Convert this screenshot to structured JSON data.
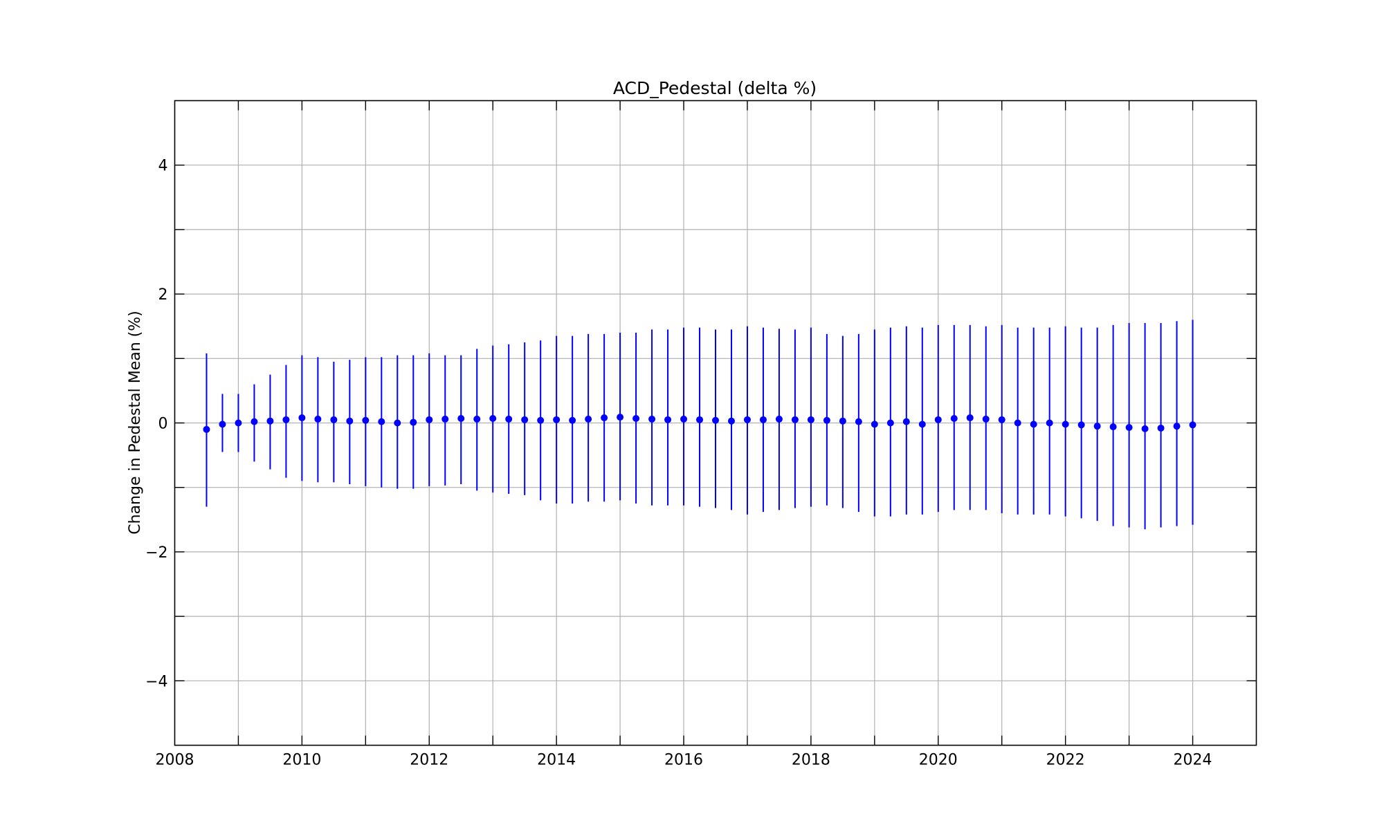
{
  "chart_data": {
    "type": "scatter",
    "title": "ACD_Pedestal (delta %)",
    "xlabel": "",
    "ylabel": "Change in Pedestal Mean (%)",
    "xlim": [
      2008,
      2025
    ],
    "ylim": [
      -5,
      5
    ],
    "x_ticks": [
      2008,
      2010,
      2012,
      2014,
      2016,
      2018,
      2020,
      2022,
      2024
    ],
    "y_ticks": [
      -4,
      -2,
      0,
      2,
      4
    ],
    "x_tick_labels": [
      "2008",
      "2010",
      "2012",
      "2014",
      "2016",
      "2018",
      "2020",
      "2022",
      "2024"
    ],
    "y_tick_labels": [
      "−4",
      "−2",
      "0",
      "2",
      "4"
    ],
    "grid": true,
    "grid_x_step": 1,
    "grid_y_step": 1,
    "marker": "circle",
    "error_bars": true,
    "color": "#0000ff",
    "series": [
      {
        "x": [
          2008.5,
          2008.75,
          2009.0,
          2009.25,
          2009.5,
          2009.75,
          2010.0,
          2010.25,
          2010.5,
          2010.75,
          2011.0,
          2011.25,
          2011.5,
          2011.75,
          2012.0,
          2012.25,
          2012.5,
          2012.75,
          2013.0,
          2013.25,
          2013.5,
          2013.75,
          2014.0,
          2014.25,
          2014.5,
          2014.75,
          2015.0,
          2015.25,
          2015.5,
          2015.75,
          2016.0,
          2016.25,
          2016.5,
          2016.75,
          2017.0,
          2017.25,
          2017.5,
          2017.75,
          2018.0,
          2018.25,
          2018.5,
          2018.75,
          2019.0,
          2019.25,
          2019.5,
          2019.75,
          2020.0,
          2020.25,
          2020.5,
          2020.75,
          2021.0,
          2021.25,
          2021.5,
          2021.75,
          2022.0,
          2022.25,
          2022.5,
          2022.75,
          2023.0,
          2023.25,
          2023.5,
          2023.75,
          2024.0
        ],
        "y": [
          -0.1,
          -0.02,
          0.0,
          0.02,
          0.03,
          0.05,
          0.08,
          0.06,
          0.05,
          0.03,
          0.04,
          0.02,
          0.0,
          0.01,
          0.05,
          0.06,
          0.07,
          0.06,
          0.07,
          0.06,
          0.05,
          0.04,
          0.05,
          0.04,
          0.06,
          0.08,
          0.09,
          0.07,
          0.06,
          0.05,
          0.06,
          0.05,
          0.04,
          0.03,
          0.05,
          0.05,
          0.06,
          0.05,
          0.05,
          0.04,
          0.03,
          0.02,
          -0.02,
          0.0,
          0.02,
          -0.02,
          0.05,
          0.07,
          0.08,
          0.06,
          0.05,
          0.0,
          -0.02,
          0.0,
          -0.02,
          -0.03,
          -0.05,
          -0.06,
          -0.07,
          -0.09,
          -0.08,
          -0.05,
          -0.03
        ],
        "err_low": [
          -1.3,
          -0.45,
          -0.45,
          -0.6,
          -0.72,
          -0.85,
          -0.9,
          -0.92,
          -0.92,
          -0.95,
          -0.98,
          -1.0,
          -1.02,
          -1.02,
          -0.98,
          -0.97,
          -0.95,
          -1.05,
          -1.08,
          -1.1,
          -1.12,
          -1.2,
          -1.25,
          -1.25,
          -1.22,
          -1.22,
          -1.2,
          -1.25,
          -1.28,
          -1.28,
          -1.28,
          -1.3,
          -1.32,
          -1.35,
          -1.42,
          -1.38,
          -1.35,
          -1.32,
          -1.3,
          -1.28,
          -1.32,
          -1.38,
          -1.45,
          -1.45,
          -1.42,
          -1.42,
          -1.38,
          -1.35,
          -1.35,
          -1.35,
          -1.4,
          -1.42,
          -1.42,
          -1.42,
          -1.45,
          -1.48,
          -1.52,
          -1.6,
          -1.62,
          -1.65,
          -1.62,
          -1.6,
          -1.58
        ],
        "err_high": [
          1.08,
          0.45,
          0.45,
          0.6,
          0.75,
          0.9,
          1.05,
          1.02,
          0.95,
          0.98,
          1.02,
          1.02,
          1.05,
          1.05,
          1.08,
          1.05,
          1.05,
          1.15,
          1.2,
          1.22,
          1.25,
          1.28,
          1.35,
          1.35,
          1.38,
          1.38,
          1.4,
          1.4,
          1.45,
          1.45,
          1.48,
          1.48,
          1.45,
          1.45,
          1.5,
          1.48,
          1.46,
          1.45,
          1.48,
          1.38,
          1.35,
          1.38,
          1.45,
          1.48,
          1.5,
          1.48,
          1.52,
          1.52,
          1.52,
          1.5,
          1.52,
          1.48,
          1.48,
          1.48,
          1.5,
          1.48,
          1.48,
          1.52,
          1.55,
          1.55,
          1.55,
          1.58,
          1.6
        ]
      }
    ]
  }
}
